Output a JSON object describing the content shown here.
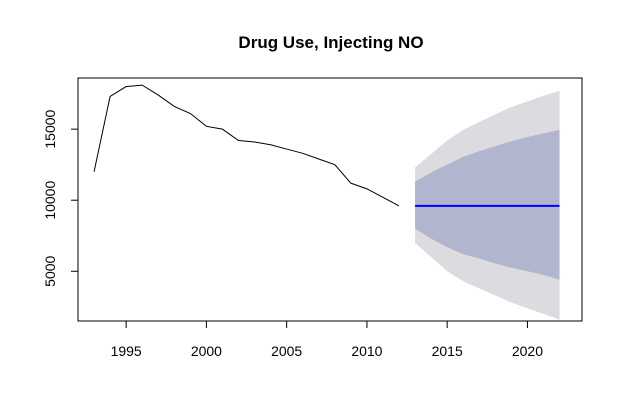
{
  "chart_data": {
    "type": "line",
    "title": "Drug Use, Injecting NO",
    "xlabel": "",
    "ylabel": "",
    "xlim": [
      1992.0,
      2023.4
    ],
    "ylim": [
      1500,
      18600
    ],
    "x_ticks": [
      1995,
      2000,
      2005,
      2010,
      2015,
      2020
    ],
    "y_ticks": [
      5000,
      10000,
      15000
    ],
    "grid": false,
    "legend": "none",
    "historical": {
      "x": [
        1993,
        1994,
        1995,
        1996,
        1997,
        1998,
        1999,
        2000,
        2001,
        2002,
        2003,
        2004,
        2005,
        2006,
        2007,
        2008,
        2009,
        2010,
        2011,
        2012
      ],
      "y": [
        12000,
        17300,
        18000,
        18100,
        17400,
        16600,
        16100,
        15200,
        15000,
        14200,
        14100,
        13900,
        13600,
        13300,
        12900,
        12500,
        11200,
        10800,
        10200,
        9600
      ]
    },
    "forecast": {
      "x": [
        2013,
        2014,
        2015,
        2016,
        2017,
        2018,
        2019,
        2020,
        2021,
        2022
      ],
      "mean": [
        9600,
        9600,
        9600,
        9600,
        9600,
        9600,
        9600,
        9600,
        9600,
        9600
      ],
      "lo80": [
        8000,
        7300,
        6700,
        6200,
        5900,
        5550,
        5250,
        5000,
        4750,
        4400
      ],
      "hi80": [
        11300,
        11950,
        12500,
        13050,
        13450,
        13800,
        14150,
        14450,
        14700,
        14950
      ],
      "lo95": [
        7000,
        6000,
        5000,
        4300,
        3800,
        3300,
        2800,
        2400,
        2000,
        1600
      ],
      "hi95": [
        12300,
        13250,
        14200,
        14950,
        15500,
        16050,
        16550,
        16950,
        17350,
        17700
      ]
    },
    "colors": {
      "line": "#000000",
      "mean": "#0000ff",
      "band80": "#b1b5ce",
      "band95": "#dbdbe0"
    }
  }
}
